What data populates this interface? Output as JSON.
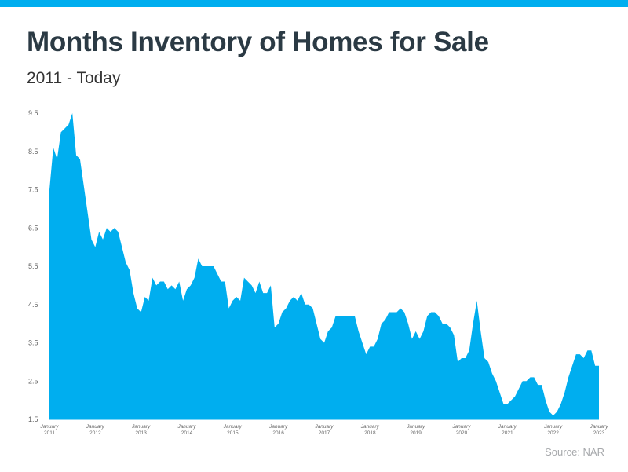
{
  "header": {
    "title": "Months Inventory of Homes for Sale",
    "subtitle": "2011 - Today"
  },
  "footer": {
    "source": "Source: NAR"
  },
  "colors": {
    "accent": "#00aeef",
    "title": "#2b3a44",
    "axis_text": "#666666",
    "source_text": "#a7a9ac"
  },
  "chart_data": {
    "type": "area",
    "title": "Months Inventory of Homes for Sale",
    "subtitle": "2011 - Today",
    "xlabel": "",
    "ylabel": "",
    "ylim": [
      1.5,
      9.5
    ],
    "yticks": [
      "9.5",
      "8.5",
      "7.5",
      "6.5",
      "5.5",
      "4.5",
      "3.5",
      "2.5",
      "1.5"
    ],
    "xticks": [
      {
        "month": "January",
        "year": "2011"
      },
      {
        "month": "January",
        "year": "2012"
      },
      {
        "month": "January",
        "year": "2013"
      },
      {
        "month": "January",
        "year": "2014"
      },
      {
        "month": "January",
        "year": "2015"
      },
      {
        "month": "January",
        "year": "2016"
      },
      {
        "month": "January",
        "year": "2017"
      },
      {
        "month": "January",
        "year": "2018"
      },
      {
        "month": "January",
        "year": "2019"
      },
      {
        "month": "January",
        "year": "2020"
      },
      {
        "month": "January",
        "year": "2021"
      },
      {
        "month": "January",
        "year": "2022"
      },
      {
        "month": "January",
        "year": "2023"
      }
    ],
    "grid": false,
    "series": [
      {
        "color": "#00aeef",
        "start": "January 2011",
        "frequency": "monthly",
        "values": [
          7.5,
          8.6,
          8.3,
          9.0,
          9.1,
          9.2,
          9.5,
          8.4,
          8.3,
          7.6,
          6.9,
          6.2,
          6.0,
          6.4,
          6.2,
          6.5,
          6.4,
          6.5,
          6.4,
          6.0,
          5.6,
          5.4,
          4.8,
          4.4,
          4.3,
          4.7,
          4.6,
          5.2,
          5.0,
          5.1,
          5.1,
          4.9,
          5.0,
          4.9,
          5.1,
          4.6,
          4.9,
          5.0,
          5.2,
          5.7,
          5.5,
          5.5,
          5.5,
          5.5,
          5.3,
          5.1,
          5.1,
          4.4,
          4.6,
          4.7,
          4.6,
          5.2,
          5.1,
          5.0,
          4.8,
          5.1,
          4.8,
          4.8,
          5.0,
          3.9,
          4.0,
          4.3,
          4.4,
          4.6,
          4.7,
          4.6,
          4.8,
          4.5,
          4.5,
          4.4,
          4.0,
          3.6,
          3.5,
          3.8,
          3.9,
          4.2,
          4.2,
          4.2,
          4.2,
          4.2,
          4.2,
          3.8,
          3.5,
          3.2,
          3.4,
          3.4,
          3.6,
          4.0,
          4.1,
          4.3,
          4.3,
          4.3,
          4.4,
          4.3,
          4.0,
          3.6,
          3.8,
          3.6,
          3.8,
          4.2,
          4.3,
          4.3,
          4.2,
          4.0,
          4.0,
          3.9,
          3.7,
          3.0,
          3.1,
          3.1,
          3.3,
          4.0,
          4.6,
          3.8,
          3.1,
          3.0,
          2.7,
          2.5,
          2.2,
          1.9,
          1.9,
          2.0,
          2.1,
          2.3,
          2.5,
          2.5,
          2.6,
          2.6,
          2.4,
          2.4,
          2.0,
          1.7,
          1.6,
          1.7,
          1.9,
          2.2,
          2.6,
          2.9,
          3.2,
          3.2,
          3.1,
          3.3,
          3.3,
          2.9,
          2.9
        ]
      }
    ]
  }
}
